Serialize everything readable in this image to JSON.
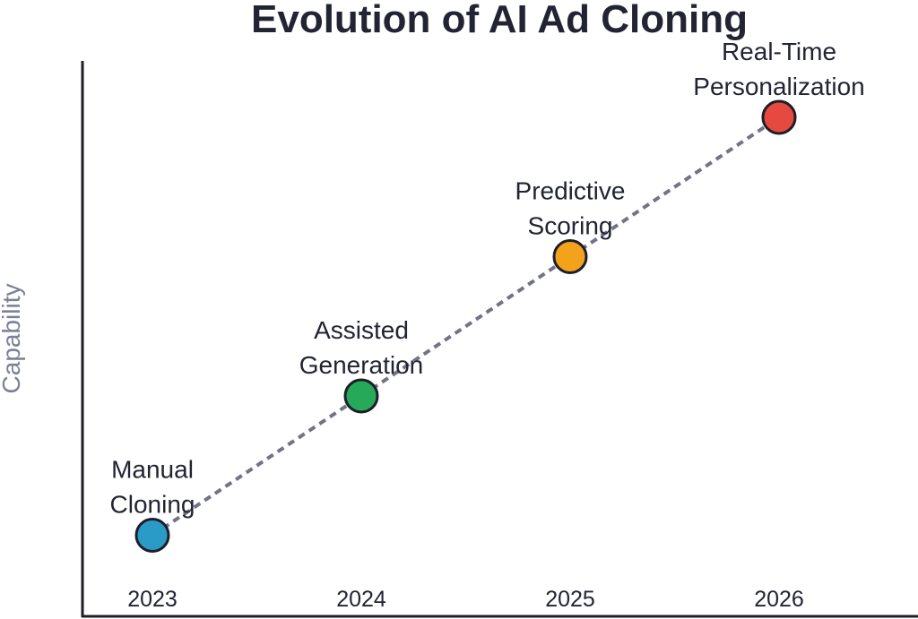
{
  "chart_data": {
    "type": "line",
    "title": "Evolution of AI Ad Cloning",
    "xlabel": "",
    "ylabel": "Capability",
    "categories": [
      "2023",
      "2024",
      "2025",
      "2026"
    ],
    "series": [
      {
        "values": [
          1,
          2,
          3,
          4
        ],
        "labels": [
          [
            "Manual",
            "Cloning"
          ],
          [
            "Assisted",
            "Generation"
          ],
          [
            "Predictive",
            "Scoring"
          ],
          [
            "Real-Time",
            "Personalization"
          ]
        ],
        "colors": [
          "#2a9bc7",
          "#27a95a",
          "#f3a21c",
          "#e5493f"
        ]
      }
    ],
    "ylim": [
      0,
      4.9
    ],
    "grid": false,
    "line_style": "dashed",
    "line_color": "#737387",
    "axis_color": "#1e1e2a",
    "title_color": "#222433",
    "ylabel_color": "#7b8096",
    "text_color": "#222433"
  }
}
